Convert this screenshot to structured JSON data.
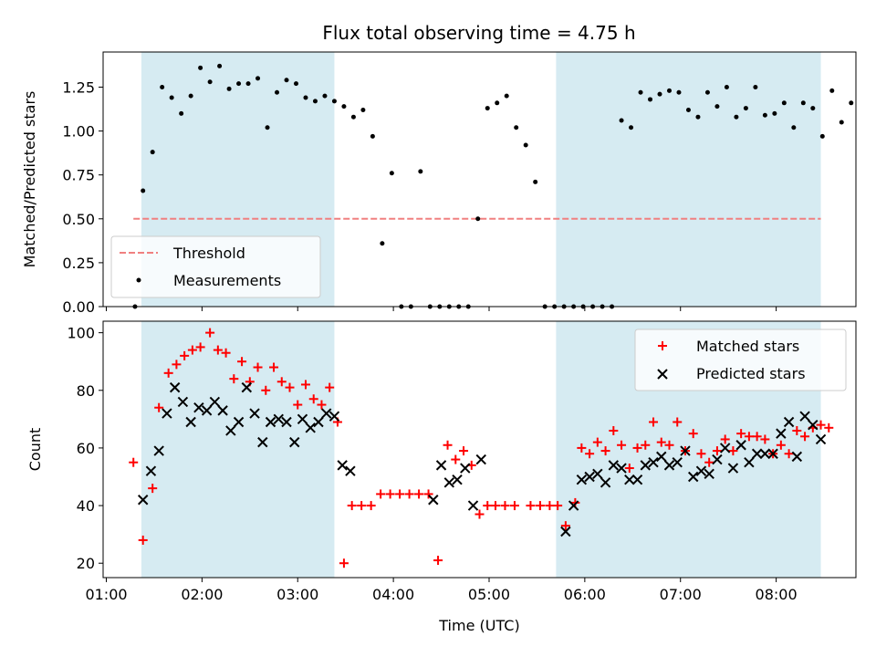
{
  "title": "Flux total observing time = 4.75 h",
  "colors": {
    "shade": "#add8e6",
    "threshold": "#f08080",
    "measurement": "#000000",
    "matched": "#ff0000",
    "predicted": "#000000"
  },
  "chart_data": [
    {
      "type": "scatter",
      "title": "Flux total observing time = 4.75 h",
      "xlabel": "",
      "ylabel": "Matched/Predicted stars",
      "xlim": [
        "00:58",
        "08:50"
      ],
      "ylim": [
        0,
        1.45
      ],
      "xticks": [
        "01:00",
        "02:00",
        "03:00",
        "04:00",
        "05:00",
        "06:00",
        "07:00",
        "08:00"
      ],
      "yticks": [
        "0.00",
        "0.25",
        "0.50",
        "0.75",
        "1.00",
        "1.25"
      ],
      "legend": {
        "placement": "lower-left",
        "entries": [
          "Threshold",
          "Measurements"
        ]
      },
      "shaded_intervals": [
        [
          "01:22",
          "03:23"
        ],
        [
          "05:42",
          "08:28"
        ]
      ],
      "threshold": {
        "name": "Threshold",
        "y": 0.5,
        "x_range": [
          "01:17",
          "08:28"
        ],
        "style": "dashed"
      },
      "series": [
        {
          "name": "Measurements",
          "marker": "dot",
          "points": [
            [
              "01:18",
              0.0
            ],
            [
              "01:23",
              0.66
            ],
            [
              "01:29",
              0.88
            ],
            [
              "01:35",
              1.25
            ],
            [
              "01:41",
              1.19
            ],
            [
              "01:47",
              1.1
            ],
            [
              "01:53",
              1.2
            ],
            [
              "01:59",
              1.36
            ],
            [
              "02:05",
              1.28
            ],
            [
              "02:11",
              1.37
            ],
            [
              "02:17",
              1.24
            ],
            [
              "02:23",
              1.27
            ],
            [
              "02:29",
              1.27
            ],
            [
              "02:35",
              1.3
            ],
            [
              "02:41",
              1.02
            ],
            [
              "02:47",
              1.22
            ],
            [
              "02:53",
              1.29
            ],
            [
              "02:59",
              1.27
            ],
            [
              "03:05",
              1.19
            ],
            [
              "03:11",
              1.17
            ],
            [
              "03:17",
              1.2
            ],
            [
              "03:23",
              1.17
            ],
            [
              "03:29",
              1.14
            ],
            [
              "03:35",
              1.08
            ],
            [
              "03:41",
              1.12
            ],
            [
              "03:47",
              0.97
            ],
            [
              "03:53",
              0.36
            ],
            [
              "03:59",
              0.76
            ],
            [
              "04:05",
              0.0
            ],
            [
              "04:11",
              0.0
            ],
            [
              "04:17",
              0.77
            ],
            [
              "04:23",
              0.0
            ],
            [
              "04:29",
              0.0
            ],
            [
              "04:35",
              0.0
            ],
            [
              "04:41",
              0.0
            ],
            [
              "04:47",
              0.0
            ],
            [
              "04:53",
              0.5
            ],
            [
              "04:59",
              1.13
            ],
            [
              "05:05",
              1.16
            ],
            [
              "05:11",
              1.2
            ],
            [
              "05:17",
              1.02
            ],
            [
              "05:23",
              0.92
            ],
            [
              "05:29",
              0.71
            ],
            [
              "05:35",
              0.0
            ],
            [
              "05:41",
              0.0
            ],
            [
              "05:47",
              0.0
            ],
            [
              "05:53",
              0.0
            ],
            [
              "05:59",
              0.0
            ],
            [
              "06:05",
              0.0
            ],
            [
              "06:11",
              0.0
            ],
            [
              "06:17",
              0.0
            ],
            [
              "06:23",
              1.06
            ],
            [
              "06:29",
              1.02
            ],
            [
              "06:35",
              1.22
            ],
            [
              "06:41",
              1.18
            ],
            [
              "06:47",
              1.21
            ],
            [
              "06:53",
              1.23
            ],
            [
              "06:59",
              1.22
            ],
            [
              "07:05",
              1.12
            ],
            [
              "07:11",
              1.08
            ],
            [
              "07:17",
              1.22
            ],
            [
              "07:23",
              1.14
            ],
            [
              "07:29",
              1.25
            ],
            [
              "07:35",
              1.08
            ],
            [
              "07:41",
              1.13
            ],
            [
              "07:47",
              1.25
            ],
            [
              "07:53",
              1.09
            ],
            [
              "07:59",
              1.1
            ],
            [
              "08:05",
              1.16
            ],
            [
              "08:11",
              1.02
            ],
            [
              "08:17",
              1.16
            ],
            [
              "08:23",
              1.13
            ],
            [
              "08:29",
              0.97
            ],
            [
              "08:35",
              1.23
            ],
            [
              "08:41",
              1.05
            ],
            [
              "08:47",
              1.16
            ]
          ]
        }
      ]
    },
    {
      "type": "scatter",
      "title": "",
      "xlabel": "Time (UTC)",
      "ylabel": "Count",
      "xlim": [
        "00:58",
        "08:50"
      ],
      "ylim": [
        15,
        104
      ],
      "xticks": [
        "01:00",
        "02:00",
        "03:00",
        "04:00",
        "05:00",
        "06:00",
        "07:00",
        "08:00"
      ],
      "yticks": [
        "20",
        "40",
        "60",
        "80",
        "100"
      ],
      "legend": {
        "placement": "upper-right",
        "entries": [
          "Matched stars",
          "Predicted stars"
        ]
      },
      "shaded_intervals": [
        [
          "01:22",
          "03:23"
        ],
        [
          "05:42",
          "08:28"
        ]
      ],
      "series": [
        {
          "name": "Matched stars",
          "marker": "plus",
          "points": [
            [
              "01:17",
              55
            ],
            [
              "01:23",
              28
            ],
            [
              "01:29",
              46
            ],
            [
              "01:33",
              74
            ],
            [
              "01:39",
              86
            ],
            [
              "01:44",
              89
            ],
            [
              "01:49",
              92
            ],
            [
              "01:54",
              94
            ],
            [
              "01:59",
              95
            ],
            [
              "02:05",
              100
            ],
            [
              "02:10",
              94
            ],
            [
              "02:15",
              93
            ],
            [
              "02:20",
              84
            ],
            [
              "02:25",
              90
            ],
            [
              "02:30",
              83
            ],
            [
              "02:35",
              88
            ],
            [
              "02:40",
              80
            ],
            [
              "02:45",
              88
            ],
            [
              "02:50",
              83
            ],
            [
              "02:55",
              81
            ],
            [
              "03:00",
              75
            ],
            [
              "03:05",
              82
            ],
            [
              "03:10",
              77
            ],
            [
              "03:15",
              75
            ],
            [
              "03:20",
              81
            ],
            [
              "03:25",
              69
            ],
            [
              "03:29",
              20
            ],
            [
              "03:34",
              40
            ],
            [
              "03:40",
              40
            ],
            [
              "03:46",
              40
            ],
            [
              "03:52",
              44
            ],
            [
              "03:58",
              44
            ],
            [
              "04:04",
              44
            ],
            [
              "04:10",
              44
            ],
            [
              "04:16",
              44
            ],
            [
              "04:22",
              44
            ],
            [
              "04:28",
              21
            ],
            [
              "04:34",
              61
            ],
            [
              "04:39",
              56
            ],
            [
              "04:44",
              59
            ],
            [
              "04:49",
              54
            ],
            [
              "04:54",
              37
            ],
            [
              "04:59",
              40
            ],
            [
              "05:04",
              40
            ],
            [
              "05:10",
              40
            ],
            [
              "05:16",
              40
            ],
            [
              "05:26",
              40
            ],
            [
              "05:32",
              40
            ],
            [
              "05:38",
              40
            ],
            [
              "05:43",
              40
            ],
            [
              "05:48",
              33
            ],
            [
              "05:54",
              41
            ],
            [
              "05:58",
              60
            ],
            [
              "06:03",
              58
            ],
            [
              "06:08",
              62
            ],
            [
              "06:13",
              59
            ],
            [
              "06:18",
              66
            ],
            [
              "06:23",
              61
            ],
            [
              "06:28",
              53
            ],
            [
              "06:33",
              60
            ],
            [
              "06:38",
              61
            ],
            [
              "06:43",
              69
            ],
            [
              "06:48",
              62
            ],
            [
              "06:53",
              61
            ],
            [
              "06:58",
              69
            ],
            [
              "07:03",
              59
            ],
            [
              "07:08",
              65
            ],
            [
              "07:13",
              58
            ],
            [
              "07:18",
              55
            ],
            [
              "07:23",
              59
            ],
            [
              "07:28",
              63
            ],
            [
              "07:33",
              59
            ],
            [
              "07:38",
              65
            ],
            [
              "07:43",
              64
            ],
            [
              "07:48",
              64
            ],
            [
              "07:53",
              63
            ],
            [
              "07:58",
              58
            ],
            [
              "08:03",
              61
            ],
            [
              "08:08",
              58
            ],
            [
              "08:13",
              66
            ],
            [
              "08:18",
              64
            ],
            [
              "08:23",
              67
            ],
            [
              "08:28",
              68
            ],
            [
              "08:33",
              67
            ]
          ]
        },
        {
          "name": "Predicted stars",
          "marker": "x",
          "points": [
            [
              "01:23",
              42
            ],
            [
              "01:28",
              52
            ],
            [
              "01:33",
              59
            ],
            [
              "01:38",
              72
            ],
            [
              "01:43",
              81
            ],
            [
              "01:48",
              76
            ],
            [
              "01:53",
              69
            ],
            [
              "01:58",
              74
            ],
            [
              "02:03",
              73
            ],
            [
              "02:08",
              76
            ],
            [
              "02:13",
              73
            ],
            [
              "02:18",
              66
            ],
            [
              "02:23",
              69
            ],
            [
              "02:28",
              81
            ],
            [
              "02:33",
              72
            ],
            [
              "02:38",
              62
            ],
            [
              "02:43",
              69
            ],
            [
              "02:48",
              70
            ],
            [
              "02:53",
              69
            ],
            [
              "02:58",
              62
            ],
            [
              "03:03",
              70
            ],
            [
              "03:08",
              67
            ],
            [
              "03:13",
              69
            ],
            [
              "03:18",
              72
            ],
            [
              "03:23",
              71
            ],
            [
              "03:28",
              54
            ],
            [
              "03:33",
              52
            ],
            [
              "04:25",
              42
            ],
            [
              "04:30",
              54
            ],
            [
              "04:35",
              48
            ],
            [
              "04:40",
              49
            ],
            [
              "04:45",
              53
            ],
            [
              "04:50",
              40
            ],
            [
              "04:55",
              56
            ],
            [
              "05:48",
              31
            ],
            [
              "05:53",
              40
            ],
            [
              "05:58",
              49
            ],
            [
              "06:03",
              50
            ],
            [
              "06:08",
              51
            ],
            [
              "06:13",
              48
            ],
            [
              "06:18",
              54
            ],
            [
              "06:23",
              53
            ],
            [
              "06:28",
              49
            ],
            [
              "06:33",
              49
            ],
            [
              "06:38",
              54
            ],
            [
              "06:43",
              55
            ],
            [
              "06:48",
              57
            ],
            [
              "06:53",
              54
            ],
            [
              "06:58",
              55
            ],
            [
              "07:03",
              59
            ],
            [
              "07:08",
              50
            ],
            [
              "07:13",
              52
            ],
            [
              "07:18",
              51
            ],
            [
              "07:23",
              56
            ],
            [
              "07:28",
              60
            ],
            [
              "07:33",
              53
            ],
            [
              "07:38",
              61
            ],
            [
              "07:43",
              55
            ],
            [
              "07:48",
              58
            ],
            [
              "07:53",
              58
            ],
            [
              "07:58",
              58
            ],
            [
              "08:03",
              65
            ],
            [
              "08:08",
              69
            ],
            [
              "08:13",
              57
            ],
            [
              "08:18",
              71
            ],
            [
              "08:23",
              68
            ],
            [
              "08:28",
              63
            ]
          ]
        }
      ]
    }
  ]
}
